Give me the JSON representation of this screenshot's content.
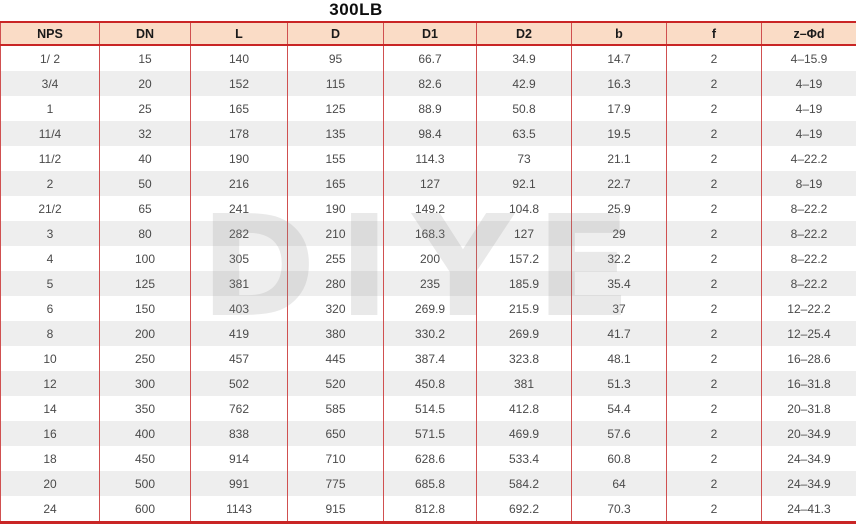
{
  "title": "300LB",
  "watermark": "DIYE",
  "colors": {
    "header_bg": "#fadcc6",
    "border_red": "#d05050",
    "rule_red": "#c92525",
    "row_alt": "#eeeeee",
    "cell_text": "#4a4a4a",
    "header_text": "#1a1a1a"
  },
  "table": {
    "columns": [
      "NPS",
      "DN",
      "L",
      "D",
      "D1",
      "D2",
      "b",
      "f",
      "z–Φd"
    ],
    "rows": [
      [
        "1/ 2",
        "15",
        "140",
        "95",
        "66.7",
        "34.9",
        "14.7",
        "2",
        "4–15.9"
      ],
      [
        "3/4",
        "20",
        "152",
        "115",
        "82.6",
        "42.9",
        "16.3",
        "2",
        "4–19"
      ],
      [
        "1",
        "25",
        "165",
        "125",
        "88.9",
        "50.8",
        "17.9",
        "2",
        "4–19"
      ],
      [
        "11/4",
        "32",
        "178",
        "135",
        "98.4",
        "63.5",
        "19.5",
        "2",
        "4–19"
      ],
      [
        "11/2",
        "40",
        "190",
        "155",
        "114.3",
        "73",
        "21.1",
        "2",
        "4–22.2"
      ],
      [
        "2",
        "50",
        "216",
        "165",
        "127",
        "92.1",
        "22.7",
        "2",
        "8–19"
      ],
      [
        "21/2",
        "65",
        "241",
        "190",
        "149.2",
        "104.8",
        "25.9",
        "2",
        "8–22.2"
      ],
      [
        "3",
        "80",
        "282",
        "210",
        "168.3",
        "127",
        "29",
        "2",
        "8–22.2"
      ],
      [
        "4",
        "100",
        "305",
        "255",
        "200",
        "157.2",
        "32.2",
        "2",
        "8–22.2"
      ],
      [
        "5",
        "125",
        "381",
        "280",
        "235",
        "185.9",
        "35.4",
        "2",
        "8–22.2"
      ],
      [
        "6",
        "150",
        "403",
        "320",
        "269.9",
        "215.9",
        "37",
        "2",
        "12–22.2"
      ],
      [
        "8",
        "200",
        "419",
        "380",
        "330.2",
        "269.9",
        "41.7",
        "2",
        "12–25.4"
      ],
      [
        "10",
        "250",
        "457",
        "445",
        "387.4",
        "323.8",
        "48.1",
        "2",
        "16–28.6"
      ],
      [
        "12",
        "300",
        "502",
        "520",
        "450.8",
        "381",
        "51.3",
        "2",
        "16–31.8"
      ],
      [
        "14",
        "350",
        "762",
        "585",
        "514.5",
        "412.8",
        "54.4",
        "2",
        "20–31.8"
      ],
      [
        "16",
        "400",
        "838",
        "650",
        "571.5",
        "469.9",
        "57.6",
        "2",
        "20–34.9"
      ],
      [
        "18",
        "450",
        "914",
        "710",
        "628.6",
        "533.4",
        "60.8",
        "2",
        "24–34.9"
      ],
      [
        "20",
        "500",
        "991",
        "775",
        "685.8",
        "584.2",
        "64",
        "2",
        "24–34.9"
      ],
      [
        "24",
        "600",
        "1143",
        "915",
        "812.8",
        "692.2",
        "70.3",
        "2",
        "24–41.3"
      ]
    ]
  }
}
